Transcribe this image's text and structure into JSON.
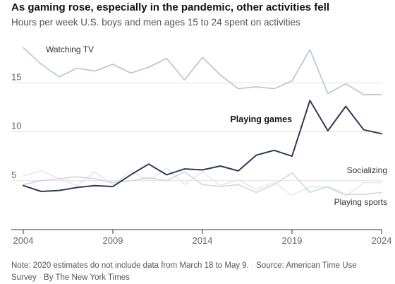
{
  "header": {
    "title": "As gaming rose, especially in the pandemic, other activities fell",
    "subtitle": "Hours per week U.S. boys and men ages 15 to 24 spent on activities"
  },
  "footer": {
    "note": "Note: 2020 estimates do not include data from March 18 to May 9.",
    "source": "Source: American Time Use Survey",
    "credit": "By The New York Times",
    "separator": "·"
  },
  "colors": {
    "gaming": "#2d3b55",
    "tv": "#b9c1d6",
    "sports": "#d0d6e4",
    "socializing": "#e4e7ee",
    "axis": "#333333",
    "grid": "#e2e2e2"
  },
  "chart_data": {
    "type": "line",
    "title": "As gaming rose, especially in the pandemic, other activities fell",
    "subtitle": "Hours per week U.S. boys and men ages 15 to 24 spent on activities",
    "xlabel": "",
    "ylabel": "",
    "xlim": [
      2004,
      2024
    ],
    "ylim": [
      0,
      20
    ],
    "x_ticks": [
      2004,
      2009,
      2014,
      2019,
      2024
    ],
    "y_ticks": [
      5,
      10,
      15
    ],
    "grid": "horizontal",
    "x": [
      2004,
      2005,
      2006,
      2007,
      2008,
      2009,
      2010,
      2011,
      2012,
      2013,
      2014,
      2015,
      2016,
      2017,
      2018,
      2019,
      2020,
      2021,
      2022,
      2023,
      2024
    ],
    "series": [
      {
        "name": "Watching TV",
        "key": "tv",
        "values": [
          18.6,
          16.9,
          15.6,
          16.5,
          16.2,
          16.9,
          16.0,
          16.6,
          17.5,
          15.3,
          17.6,
          15.8,
          14.4,
          14.6,
          14.4,
          15.2,
          18.4,
          13.9,
          14.9,
          13.8,
          13.8
        ]
      },
      {
        "name": "Playing games",
        "key": "gaming",
        "values": [
          4.5,
          3.9,
          4.0,
          4.3,
          4.5,
          4.4,
          5.6,
          6.7,
          5.6,
          6.2,
          6.1,
          6.5,
          6.0,
          7.6,
          8.1,
          7.5,
          13.2,
          10.1,
          12.6,
          10.2,
          9.8
        ]
      },
      {
        "name": "Socializing",
        "key": "socializing",
        "values": [
          5.5,
          6.0,
          5.2,
          4.5,
          5.9,
          4.6,
          6.0,
          5.0,
          6.3,
          4.6,
          5.9,
          4.5,
          5.1,
          4.1,
          4.8,
          3.5,
          4.4,
          4.3,
          3.4,
          4.8,
          4.8
        ]
      },
      {
        "name": "Playing sports",
        "key": "sports",
        "values": [
          4.6,
          5.0,
          5.2,
          5.4,
          5.2,
          4.8,
          5.0,
          5.3,
          5.0,
          5.9,
          4.6,
          4.4,
          4.6,
          3.8,
          4.6,
          5.8,
          3.8,
          4.4,
          3.6,
          3.6,
          3.8
        ]
      }
    ]
  }
}
